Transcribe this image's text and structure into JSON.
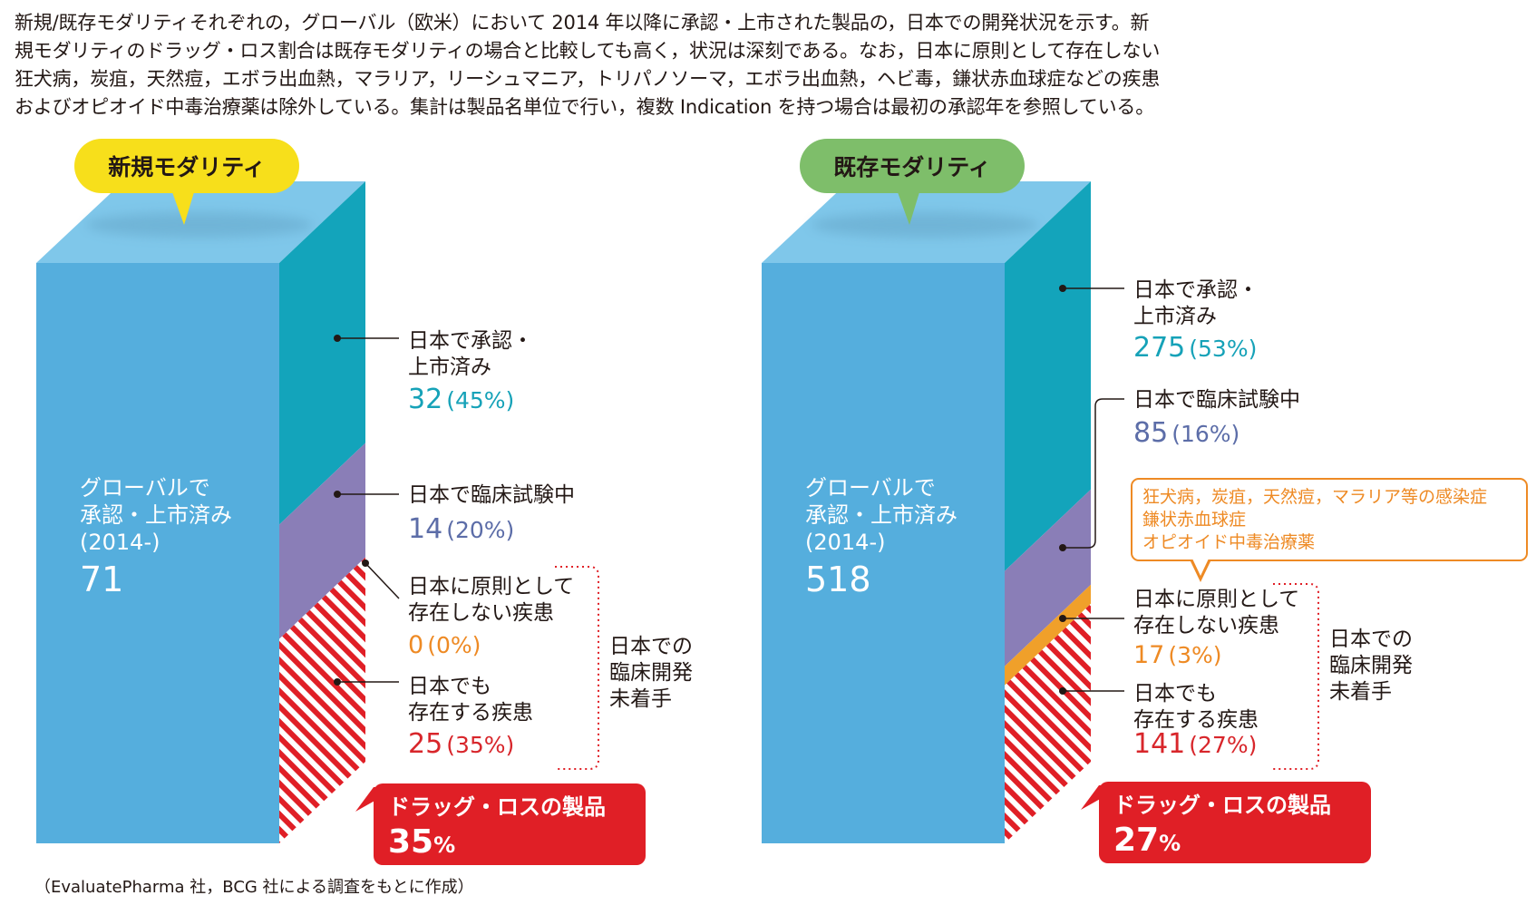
{
  "intro": {
    "lines": [
      "新規/既存モダリティそれぞれの，グローバル（欧米）において 2014 年以降に承認・上市された製品の，日本での開発状況を示す。新",
      "規モダリティのドラッグ・ロス割合は既存モダリティの場合と比較しても高く，状況は深刻である。なお，日本に原則として存在しない",
      "狂犬病，炭疽，天然痘，エボラ出血熱，マラリア，リーシュマニア，トリパノソーマ，エボラ出血熱，ヘビ毒，鎌状赤血球症などの疾患",
      "およびオピオイド中毒治療薬は除外している。集計は製品名単位で行い，複数 Indication を持つ場合は最初の承認年を参照している。"
    ]
  },
  "chart_data": [
    {
      "type": "bar",
      "title": "新規モダリティ",
      "total": {
        "label_lines": [
          "グローバルで",
          "承認・上市済み",
          "(2014-)"
        ],
        "value": 71
      },
      "segments": [
        {
          "name_lines": [
            "日本で承認・",
            "上市済み"
          ],
          "value": 32,
          "value_text": "32",
          "pct_text": "(45%)",
          "color": "#13a4bb"
        },
        {
          "name_lines": [
            "日本で臨床試験中"
          ],
          "value": 14,
          "value_text": "14",
          "pct_text": "(20%)",
          "color": "#8a7eb7"
        },
        {
          "name_lines": [
            "日本に原則として",
            "存在しない疾患"
          ],
          "value": 0,
          "value_text": "0",
          "pct_text": "(0%)",
          "color": "#f0a02a"
        },
        {
          "name_lines": [
            "日本でも",
            "存在する疾患"
          ],
          "value": 25,
          "value_text": "25",
          "pct_text": "(35%)",
          "color": "#e01f26"
        }
      ],
      "bracket_label_lines": [
        "日本での",
        "臨床開発",
        "未着手"
      ],
      "callout": {
        "label": "ドラッグ・ロスの製品",
        "value": "35",
        "unit": "%"
      }
    },
    {
      "type": "bar",
      "title": "既存モダリティ",
      "total": {
        "label_lines": [
          "グローバルで",
          "承認・上市済み",
          "(2014-)"
        ],
        "value": 518
      },
      "segments": [
        {
          "name_lines": [
            "日本で承認・",
            "上市済み"
          ],
          "value": 275,
          "value_text": "275",
          "pct_text": "(53%)",
          "color": "#13a4bb"
        },
        {
          "name_lines": [
            "日本で臨床試験中"
          ],
          "value": 85,
          "value_text": "85",
          "pct_text": "(16%)",
          "color": "#8a7eb7"
        },
        {
          "name_lines": [
            "日本に原則として",
            "存在しない疾患"
          ],
          "value": 17,
          "value_text": "17",
          "pct_text": "(3%)",
          "color": "#f0a02a"
        },
        {
          "name_lines": [
            "日本でも",
            "存在する疾患"
          ],
          "value": 141,
          "value_text": "141",
          "pct_text": "(27%)",
          "color": "#e01f26"
        }
      ],
      "note_lines": [
        "狂犬病，炭疽，天然痘，マラリア等の感染症",
        "鎌状赤血球症",
        "オピオイド中毒治療薬"
      ],
      "bracket_label_lines": [
        "日本での",
        "臨床開発",
        "未着手"
      ],
      "callout": {
        "label": "ドラッグ・ロスの製品",
        "value": "27",
        "unit": "%"
      }
    }
  ],
  "colors": {
    "front": "#55aedd",
    "top": "#7fc7ea",
    "side_approved": "#13a4bb",
    "trial": "#8a7eb7",
    "absent": "#f0a02a",
    "loss": "#e01f26",
    "pill_new": "#f7df1b",
    "pill_existing": "#7ebe6a",
    "text_teal": "#16a2b8",
    "text_purple": "#5c6da8",
    "text_orange": "#ee8a24",
    "text_red": "#d8262b"
  },
  "source": "（EvaluatePharma 社，BCG 社による調査をもとに作成）"
}
